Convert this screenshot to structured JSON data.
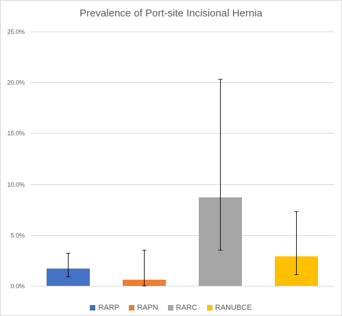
{
  "chart_data": {
    "type": "bar",
    "title": "Prevalence of Port-site Incisional Hernia",
    "xlabel": "",
    "ylabel": "",
    "categories": [
      "RARP",
      "RAPN",
      "RARC",
      "RANUBCE"
    ],
    "values": [
      1.7,
      0.6,
      8.7,
      2.9
    ],
    "error_bars": {
      "lower": [
        0.9,
        0.0,
        3.5,
        1.1
      ],
      "upper": [
        3.2,
        3.5,
        20.3,
        7.3
      ]
    },
    "colors": [
      "#4472c4",
      "#ed7d31",
      "#a5a5a5",
      "#ffc000"
    ],
    "ylim": [
      0,
      25
    ],
    "yticks": [
      "0.0%",
      "5.0%",
      "10.0%",
      "15.0%",
      "20.0%",
      "25.0%"
    ],
    "y_tick_values": [
      0,
      5,
      10,
      15,
      20,
      25
    ],
    "grid": true,
    "legend_position": "bottom"
  }
}
